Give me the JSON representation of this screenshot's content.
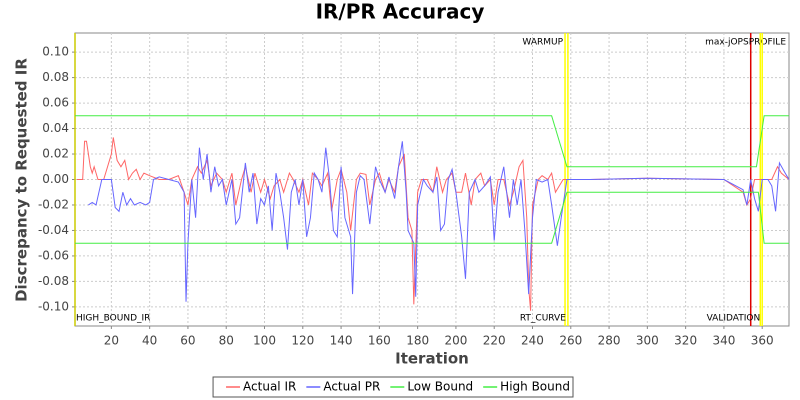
{
  "chart_data": {
    "type": "line",
    "title": "IR/PR Accuracy",
    "x_label": "Iteration",
    "y_label": "Discrepancy to Requested IR",
    "xlim": [
      1,
      374
    ],
    "ylim": [
      -0.115,
      0.115
    ],
    "xticks": [
      20,
      40,
      60,
      80,
      100,
      120,
      140,
      160,
      180,
      200,
      220,
      240,
      260,
      280,
      300,
      320,
      340,
      360
    ],
    "yticks": [
      {
        "value": -0.1,
        "label": "-0.10"
      },
      {
        "value": -0.08,
        "label": "-0.08"
      },
      {
        "value": -0.06,
        "label": "-0.06"
      },
      {
        "value": -0.04,
        "label": "-0.04"
      },
      {
        "value": -0.02,
        "label": "-0.02"
      },
      {
        "value": 0,
        "label": "0.00"
      },
      {
        "value": 0.02,
        "label": "0.02"
      },
      {
        "value": 0.04,
        "label": "0.04"
      },
      {
        "value": 0.06,
        "label": "0.06"
      },
      {
        "value": 0.08,
        "label": "0.08"
      },
      {
        "value": 0.1,
        "label": "0.10"
      }
    ],
    "grid": true,
    "markers": [
      {
        "label": "HIGH_BOUND_IR",
        "x": 1,
        "color": "#cccc00",
        "side": "bottom"
      },
      {
        "label": "WARMUP",
        "x": 257,
        "color": "#ffff00",
        "side": "top"
      },
      {
        "label": "RT_CURVE",
        "x": 258.5,
        "color": "#ffff00",
        "side": "bottom"
      },
      {
        "label": "max-jOPS",
        "x": 354,
        "color": "#dd0000",
        "side": "top"
      },
      {
        "label": "PROFILE",
        "x": 359,
        "color": "#ffff00",
        "side": "top"
      },
      {
        "label": "VALIDATION",
        "x": 360,
        "color": "#ffff00",
        "side": "bottom"
      }
    ],
    "series": [
      {
        "name": "Actual IR",
        "color": "#ff6666",
        "x": [
          2,
          5,
          6,
          7,
          9,
          10,
          11,
          13,
          16,
          20,
          21,
          23,
          25,
          27,
          29,
          31,
          33,
          35,
          37,
          40,
          45,
          50,
          55,
          58,
          60,
          62,
          65,
          67,
          70,
          72,
          75,
          78,
          80,
          83,
          85,
          88,
          90,
          93,
          95,
          98,
          100,
          103,
          105,
          108,
          110,
          113,
          115,
          118,
          120,
          123,
          125,
          128,
          130,
          133,
          135,
          138,
          140,
          143,
          145,
          148,
          150,
          153,
          155,
          158,
          160,
          163,
          165,
          168,
          170,
          173,
          175,
          177,
          178,
          180,
          182,
          185,
          188,
          190,
          193,
          195,
          198,
          200,
          203,
          205,
          208,
          210,
          213,
          215,
          218,
          220,
          222,
          225,
          228,
          230,
          233,
          235,
          237,
          238,
          239,
          240,
          243,
          245,
          248,
          250,
          252,
          254,
          256,
          258,
          270,
          300,
          340,
          350,
          352,
          354,
          356,
          358,
          360,
          365,
          368,
          370,
          374
        ],
        "values": [
          0,
          0,
          0.03,
          0.03,
          0.01,
          0.005,
          0.01,
          0,
          0,
          0.02,
          0.033,
          0.015,
          0.01,
          0.015,
          0,
          0.005,
          0.008,
          0,
          0.005,
          0.003,
          0,
          0,
          0.003,
          -0.01,
          -0.02,
          0,
          0.01,
          0.005,
          0.015,
          -0.005,
          0.005,
          0,
          -0.01,
          0.005,
          -0.02,
          0,
          0.01,
          -0.01,
          0.005,
          -0.01,
          0,
          -0.015,
          -0.005,
          0,
          -0.01,
          0.005,
          0,
          -0.01,
          0,
          -0.02,
          0.005,
          0,
          -0.005,
          0.005,
          -0.025,
          0,
          0.008,
          -0.01,
          -0.04,
          0,
          0.005,
          0.004,
          -0.02,
          0,
          0.005,
          -0.01,
          0,
          -0.01,
          0.01,
          0.02,
          -0.03,
          -0.04,
          -0.098,
          -0.01,
          0,
          0,
          -0.01,
          0.01,
          -0.01,
          0,
          0.005,
          -0.01,
          -0.01,
          0.005,
          -0.02,
          0,
          0.005,
          -0.005,
          0,
          -0.02,
          0,
          0,
          -0.02,
          -0.01,
          0.01,
          0.015,
          -0.03,
          -0.085,
          -0.103,
          -0.02,
          0,
          0.003,
          0,
          0.005,
          -0.01,
          -0.005,
          0,
          0,
          0,
          0.001,
          0,
          -0.01,
          -0.02,
          -0.015,
          0,
          0,
          0,
          0,
          0.01,
          0.005,
          0
        ]
      },
      {
        "name": "Actual PR",
        "color": "#6666ff",
        "x": [
          8,
          10,
          12,
          15,
          18,
          20,
          22,
          24,
          26,
          28,
          30,
          32,
          35,
          38,
          40,
          42,
          45,
          50,
          55,
          58,
          59,
          60,
          62,
          64,
          66,
          68,
          70,
          72,
          74,
          76,
          78,
          80,
          83,
          85,
          87,
          90,
          92,
          94,
          96,
          98,
          100,
          102,
          104,
          106,
          108,
          110,
          112,
          114,
          116,
          118,
          120,
          122,
          124,
          126,
          128,
          130,
          132,
          134,
          136,
          138,
          140,
          142,
          145,
          146,
          148,
          150,
          152,
          155,
          158,
          160,
          163,
          165,
          168,
          170,
          172,
          174,
          175,
          178,
          179,
          180,
          183,
          185,
          188,
          190,
          192,
          194,
          196,
          198,
          200,
          203,
          205,
          207,
          210,
          212,
          215,
          218,
          220,
          222,
          225,
          228,
          230,
          232,
          234,
          236,
          238,
          240,
          242,
          245,
          248,
          250,
          253,
          255,
          258,
          270,
          300,
          340,
          350,
          352,
          354,
          356,
          358,
          360,
          363,
          365,
          367,
          369,
          372,
          374
        ],
        "values": [
          -0.02,
          -0.018,
          -0.02,
          0,
          0,
          0,
          -0.022,
          -0.025,
          -0.01,
          -0.02,
          -0.015,
          -0.02,
          -0.018,
          -0.02,
          -0.018,
          0,
          0.002,
          0,
          -0.002,
          -0.01,
          -0.096,
          -0.05,
          0,
          -0.03,
          0.025,
          0,
          0.02,
          -0.01,
          0.01,
          -0.005,
          0,
          -0.02,
          0,
          -0.035,
          -0.03,
          0.013,
          -0.01,
          0.005,
          -0.035,
          -0.015,
          -0.02,
          -0.005,
          -0.04,
          0.005,
          -0.01,
          -0.03,
          -0.055,
          -0.01,
          0,
          -0.02,
          0,
          -0.045,
          -0.03,
          0.005,
          0,
          -0.01,
          0.025,
          0,
          -0.04,
          -0.045,
          0.01,
          -0.03,
          -0.045,
          -0.09,
          -0.01,
          0.003,
          0,
          -0.035,
          0.01,
          0,
          -0.01,
          0.002,
          -0.015,
          0.01,
          0.03,
          -0.01,
          -0.04,
          -0.05,
          -0.092,
          -0.02,
          0,
          -0.005,
          -0.01,
          0.002,
          -0.04,
          -0.035,
          0,
          0.008,
          -0.01,
          -0.045,
          -0.078,
          -0.01,
          0,
          -0.01,
          -0.005,
          0.002,
          -0.048,
          -0.01,
          0.01,
          -0.03,
          0,
          -0.02,
          0,
          -0.04,
          -0.09,
          -0.03,
          0,
          -0.002,
          0,
          -0.02,
          -0.052,
          -0.03,
          0,
          0,
          0.001,
          0,
          -0.008,
          -0.02,
          0,
          -0.015,
          -0.025,
          0,
          0,
          -0.005,
          -0.025,
          0.013,
          0.005,
          0
        ]
      },
      {
        "name": "Low Bound",
        "color": "#44ee44",
        "x": [
          1,
          250,
          258,
          358,
          361,
          374
        ],
        "values": [
          -0.05,
          -0.05,
          -0.01,
          -0.01,
          -0.05,
          -0.05
        ]
      },
      {
        "name": "High Bound",
        "color": "#44ee44",
        "x": [
          1,
          250,
          258,
          357,
          361,
          374
        ],
        "values": [
          0.05,
          0.05,
          0.01,
          0.01,
          0.05,
          0.05
        ]
      }
    ]
  }
}
